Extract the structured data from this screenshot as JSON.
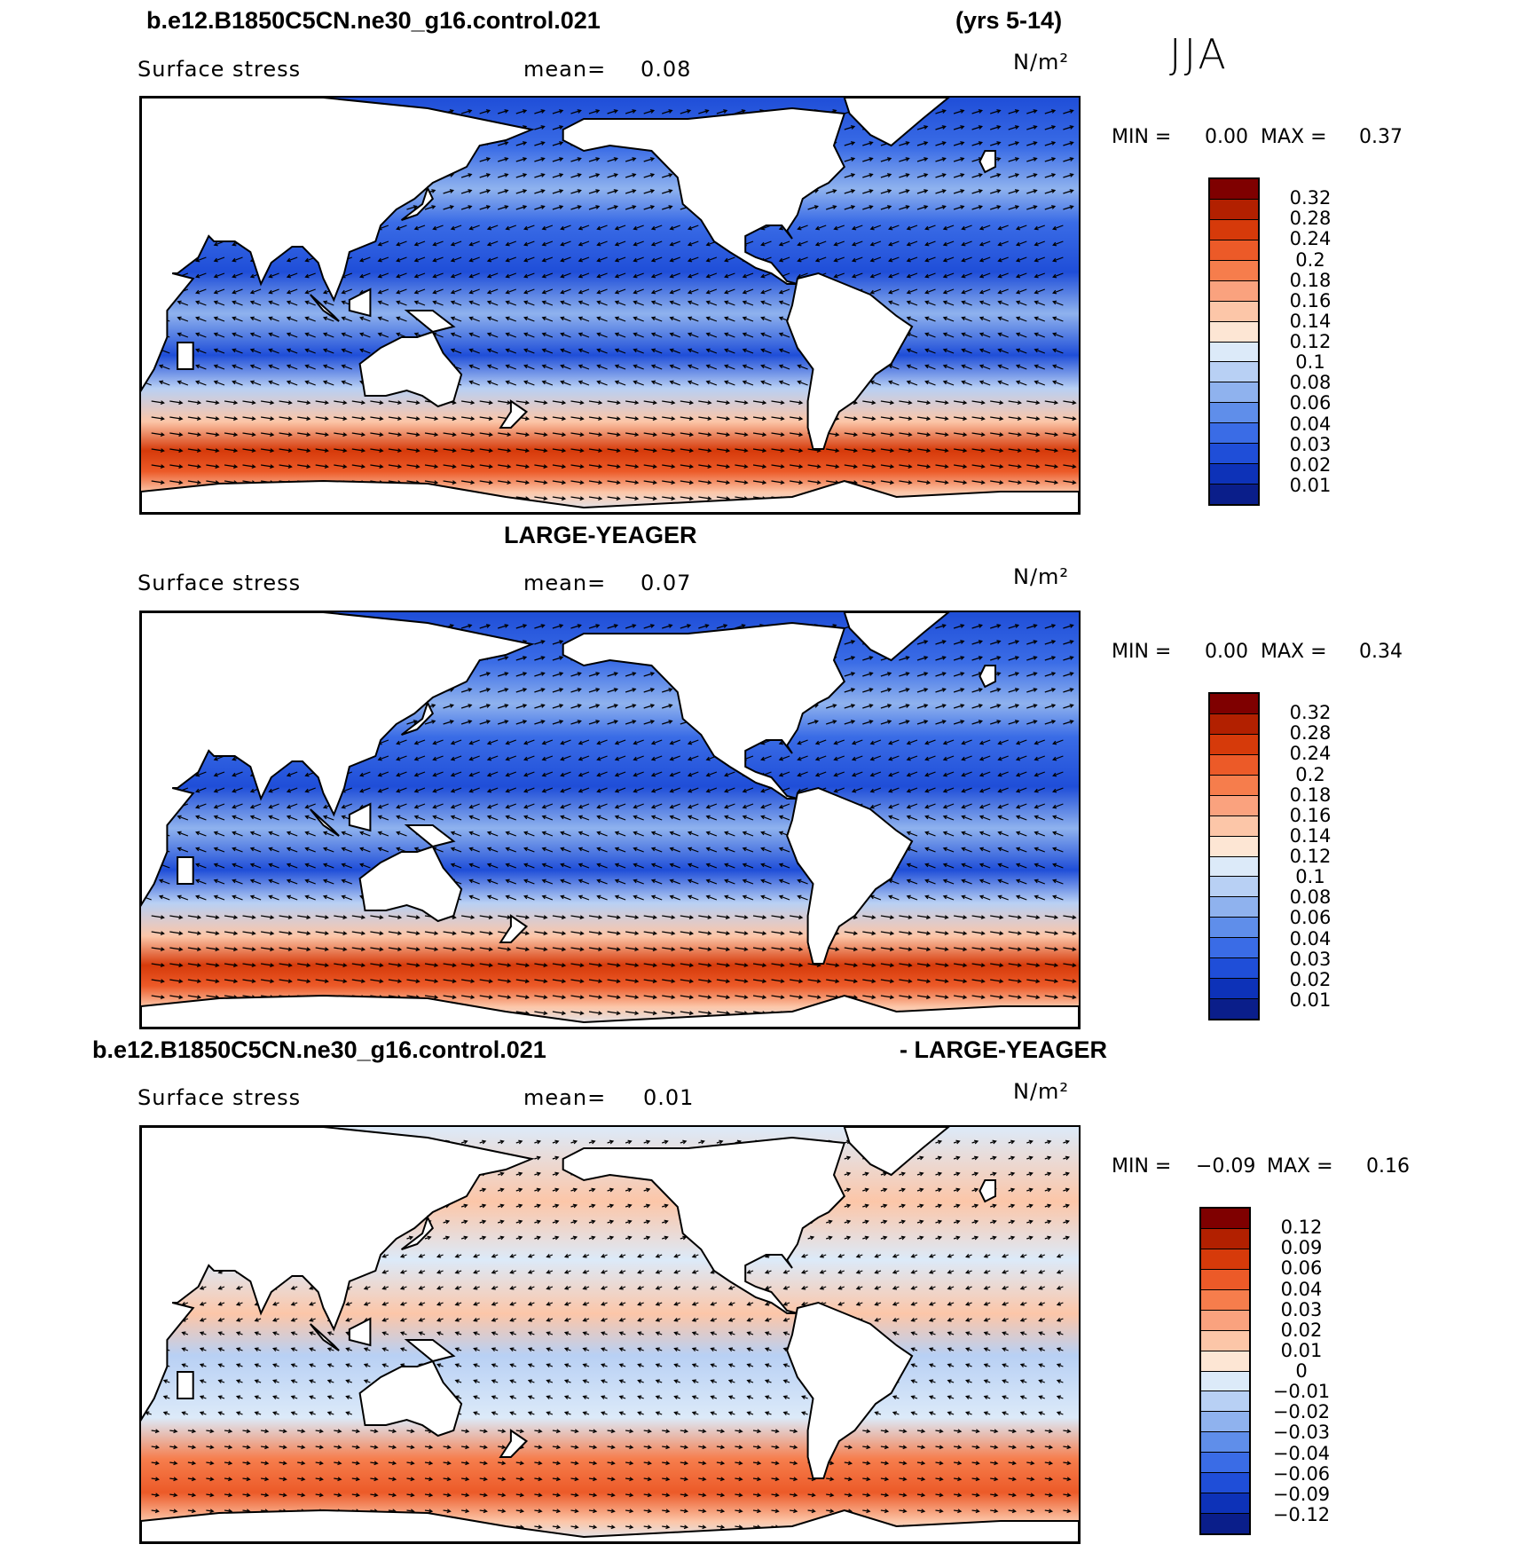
{
  "header": {
    "case_name": "b.e12.B1850C5CN.ne30_g16.control.021",
    "years": "(yrs 5-14)",
    "season": "JJA"
  },
  "panels": [
    {
      "id": "model",
      "title": "",
      "variable": "Surface stress",
      "mean_label": "mean=",
      "mean_value": "0.08",
      "units": "N/m²",
      "min_label": "MIN =",
      "min_value": "0.00",
      "max_label": "MAX =",
      "max_value": "0.37",
      "colorbar_labels": [
        "0.32",
        "0.28",
        "0.24",
        "0.2",
        "0.18",
        "0.16",
        "0.14",
        "0.12",
        "0.1",
        "0.08",
        "0.06",
        "0.04",
        "0.03",
        "0.02",
        "0.01"
      ],
      "colorbar_colors": [
        "#7f0000",
        "#b22000",
        "#d63a0a",
        "#ec5a28",
        "#f67d4c",
        "#faa27e",
        "#fcc6a8",
        "#fde6d4",
        "#dceaf9",
        "#b8d0f4",
        "#8fb2ee",
        "#5f8eea",
        "#3a6ce6",
        "#1f4ed8",
        "#0d32b8",
        "#0a1e8a"
      ],
      "contour_base": "blue"
    },
    {
      "id": "obs",
      "title": "LARGE-YEAGER",
      "variable": "Surface stress",
      "mean_label": "mean=",
      "mean_value": "0.07",
      "units": "N/m²",
      "min_label": "MIN =",
      "min_value": "0.00",
      "max_label": "MAX =",
      "max_value": "0.34",
      "colorbar_labels": [
        "0.32",
        "0.28",
        "0.24",
        "0.2",
        "0.18",
        "0.16",
        "0.14",
        "0.12",
        "0.1",
        "0.08",
        "0.06",
        "0.04",
        "0.03",
        "0.02",
        "0.01"
      ],
      "colorbar_colors": [
        "#7f0000",
        "#b22000",
        "#d63a0a",
        "#ec5a28",
        "#f67d4c",
        "#faa27e",
        "#fcc6a8",
        "#fde6d4",
        "#dceaf9",
        "#b8d0f4",
        "#8fb2ee",
        "#5f8eea",
        "#3a6ce6",
        "#1f4ed8",
        "#0d32b8",
        "#0a1e8a"
      ],
      "contour_base": "blue"
    },
    {
      "id": "diff",
      "title_left": "b.e12.B1850C5CN.ne30_g16.control.021",
      "title_right": "- LARGE-YEAGER",
      "variable": "Surface stress",
      "mean_label": "mean=",
      "mean_value": "0.01",
      "units": "N/m²",
      "min_label": "MIN =",
      "min_value": "−0.09",
      "max_label": "MAX =",
      "max_value": "0.16",
      "colorbar_labels": [
        "0.12",
        "0.09",
        "0.06",
        "0.04",
        "0.03",
        "0.02",
        "0.01",
        "0",
        "−0.01",
        "−0.02",
        "−0.03",
        "−0.04",
        "−0.06",
        "−0.09",
        "−0.12"
      ],
      "colorbar_colors": [
        "#7f0000",
        "#b22000",
        "#d63a0a",
        "#ec5a28",
        "#f67d4c",
        "#faa27e",
        "#fcc6a8",
        "#fde6d4",
        "#dceaf9",
        "#b8d0f4",
        "#8fb2ee",
        "#5f8eea",
        "#3a6ce6",
        "#1f4ed8",
        "#0d32b8",
        "#0a1e8a"
      ],
      "contour_base": "diff"
    }
  ]
}
